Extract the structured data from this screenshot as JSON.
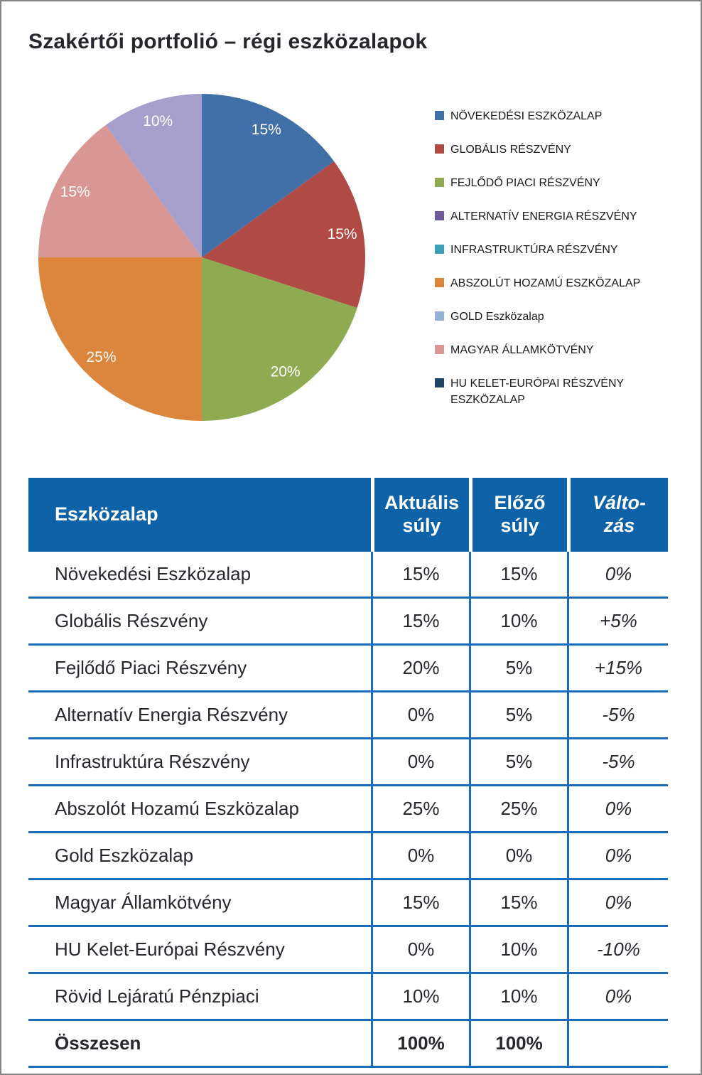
{
  "page": {
    "title": "Szakértői portfolió – régi eszközalapok"
  },
  "colors": {
    "table_header_bg": "#0E63A8",
    "table_grid": "#186CB9",
    "pie_label_text": "#FFFFFF"
  },
  "chart_data": {
    "type": "pie",
    "title": "Szakértői portfolió – régi eszközalapok",
    "start_angle_deg": 0,
    "direction": "clockwise",
    "legend_position": "right",
    "slices": [
      {
        "label": "NÖVEKEDÉSI ESZKÖZALAP",
        "value": 15,
        "display": "15%",
        "color": "#4070A7"
      },
      {
        "label": "GLOBÁLIS RÉSZVÉNY",
        "value": 15,
        "display": "15%",
        "color": "#AF4A45"
      },
      {
        "label": "FEJLŐDŐ PIACI RÉSZVÉNY",
        "value": 20,
        "display": "20%",
        "color": "#8EAB51"
      },
      {
        "label": "ABSZOLÚT HOZAMÚ ESZKÖZALAP",
        "value": 25,
        "display": "25%",
        "color": "#DC853C"
      },
      {
        "label": "MAGYAR ÁLLAMKÖTVÉNY",
        "value": 15,
        "display": "15%",
        "color": "#D89795"
      },
      {
        "label": "RÖVID LEJÁRATÚ PÉNZPIACI",
        "value": 10,
        "display": "10%",
        "color": "#A79FCC"
      }
    ]
  },
  "legend": {
    "items": [
      {
        "label": "NÖVEKEDÉSI ESZKÖZALAP",
        "color": "#4070A7"
      },
      {
        "label": "GLOBÁLIS RÉSZVÉNY",
        "color": "#AF4A45"
      },
      {
        "label": "FEJLŐDŐ PIACI RÉSZVÉNY",
        "color": "#8EAB51"
      },
      {
        "label": "ALTERNATÍV ENERGIA RÉSZVÉNY",
        "color": "#6E5B99"
      },
      {
        "label": "INFRASTRUKTÚRA RÉSZVÉNY",
        "color": "#3E9FB8"
      },
      {
        "label": "ABSZOLÚT HOZAMÚ ESZKÖZALAP",
        "color": "#DC853C"
      },
      {
        "label": "GOLD Eszközalap",
        "color": "#95AFD6"
      },
      {
        "label": "MAGYAR ÁLLAMKÖTVÉNY",
        "color": "#D89795"
      },
      {
        "label": "HU KELET-EURÓPAI RÉSZVÉNY\nESZKÖZALAP",
        "color": "#1F4466"
      }
    ]
  },
  "table": {
    "headers": {
      "fund": "Eszközalap",
      "current": "Aktuális\nsúly",
      "previous": "Előző\nsúly",
      "change": "Válto-\nzás"
    },
    "rows": [
      {
        "name": "Növekedési Eszközalap",
        "current": "15%",
        "previous": "15%",
        "change": "0%"
      },
      {
        "name": "Globális Részvény",
        "current": "15%",
        "previous": "10%",
        "change": "+5%"
      },
      {
        "name": "Fejlődő Piaci Részvény",
        "current": "20%",
        "previous": "5%",
        "change": "+15%"
      },
      {
        "name": "Alternatív Energia Részvény",
        "current": "0%",
        "previous": "5%",
        "change": "-5%"
      },
      {
        "name": "Infrastruktúra Részvény",
        "current": "0%",
        "previous": "5%",
        "change": "-5%"
      },
      {
        "name": "Abszolót Hozamú Eszközalap",
        "current": "25%",
        "previous": "25%",
        "change": "0%"
      },
      {
        "name": "Gold Eszközalap",
        "current": "0%",
        "previous": "0%",
        "change": "0%"
      },
      {
        "name": "Magyar Államkötvény",
        "current": "15%",
        "previous": "15%",
        "change": "0%"
      },
      {
        "name": "HU Kelet-Európai Részvény",
        "current": "0%",
        "previous": "10%",
        "change": "-10%"
      },
      {
        "name": "Rövid Lejáratú Pénzpiaci",
        "current": "10%",
        "previous": "10%",
        "change": "0%"
      }
    ],
    "total_row": {
      "name": "Összesen",
      "current": "100%",
      "previous": "100%",
      "change": ""
    }
  }
}
